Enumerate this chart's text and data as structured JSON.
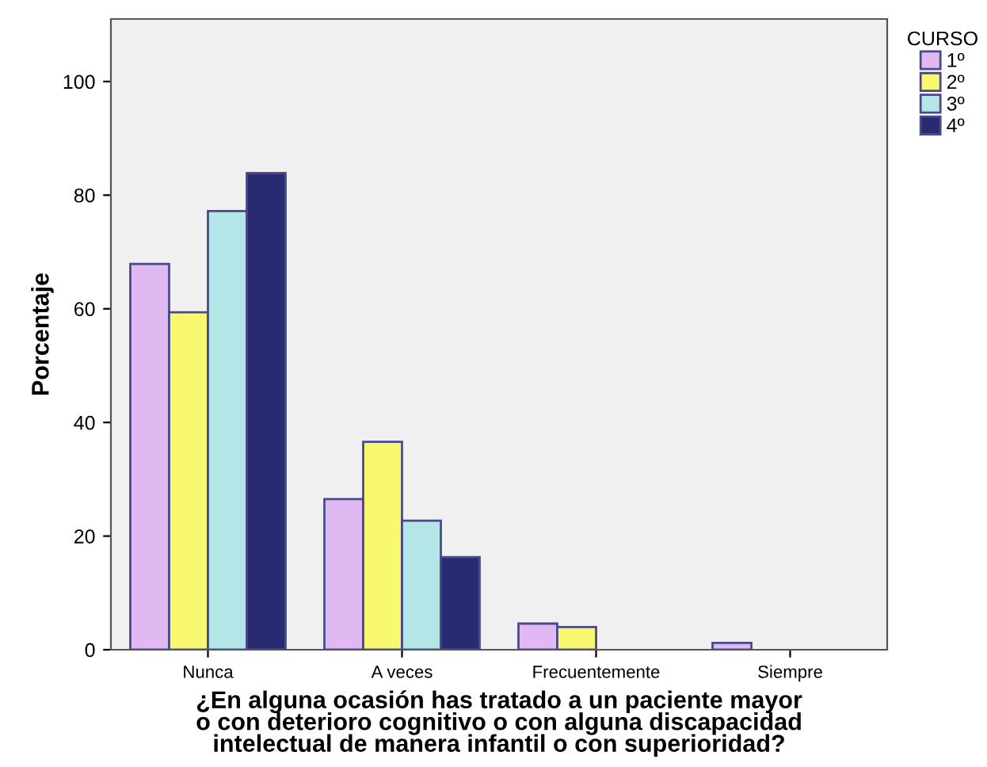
{
  "chart_data": {
    "type": "bar",
    "categories": [
      "Nunca",
      "A veces",
      "Frecuentemente",
      "Siempre"
    ],
    "series": [
      {
        "name": "1º",
        "color": "#e0b8f2",
        "values": [
          67.9,
          26.5,
          4.6,
          1.2
        ]
      },
      {
        "name": "2º",
        "color": "#f8f870",
        "values": [
          59.4,
          36.6,
          4.0,
          0
        ]
      },
      {
        "name": "3º",
        "color": "#b4e6e8",
        "values": [
          77.2,
          22.7,
          0,
          0
        ]
      },
      {
        "name": "4º",
        "color": "#282a72",
        "values": [
          83.9,
          16.3,
          0,
          0
        ]
      }
    ],
    "xlabel": "¿En alguna ocasión has tratado a un paciente mayor\no con deterioro cognitivo o con alguna discapacidad\nintelectual de manera infantil o con superioridad?",
    "ylabel": "Porcentaje",
    "legend_title": "CURSO",
    "legend": "right",
    "ylim": [
      0,
      111
    ],
    "yticks": [
      0,
      20,
      40,
      60,
      80,
      100
    ],
    "grid": false
  }
}
